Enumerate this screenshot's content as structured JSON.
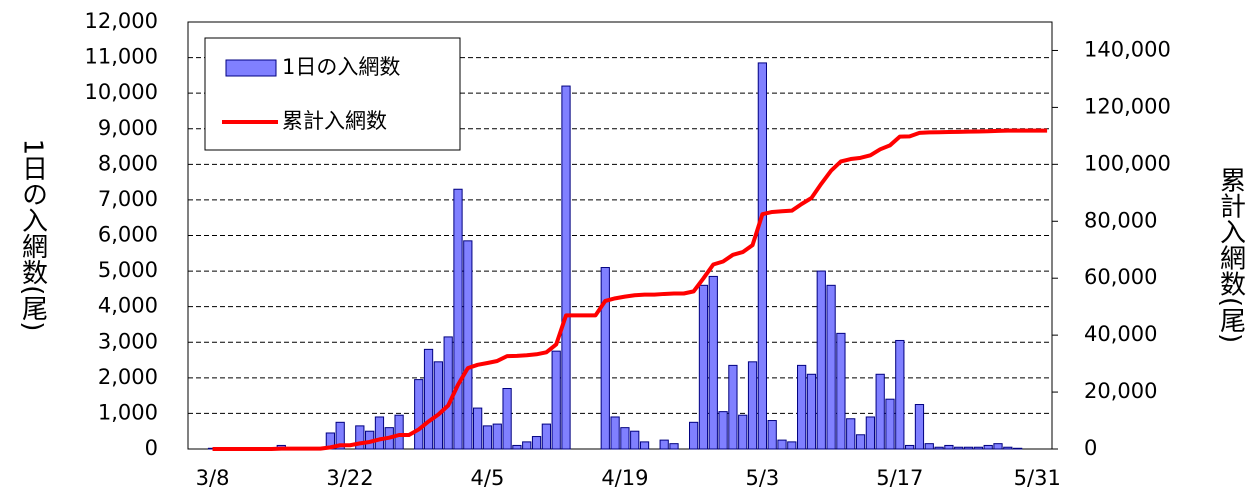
{
  "chart_data": {
    "type": "bar_line",
    "categories": [
      null,
      null,
      "3/8",
      null,
      null,
      null,
      null,
      null,
      null,
      null,
      null,
      null,
      null,
      null,
      null,
      null,
      "3/22",
      null,
      null,
      null,
      null,
      null,
      null,
      null,
      null,
      null,
      null,
      null,
      null,
      null,
      "4/5",
      null,
      null,
      null,
      null,
      null,
      null,
      null,
      null,
      null,
      null,
      null,
      null,
      null,
      "4/19",
      null,
      null,
      null,
      null,
      null,
      null,
      null,
      null,
      null,
      null,
      null,
      null,
      null,
      "5/3",
      null,
      null,
      null,
      null,
      null,
      null,
      null,
      null,
      null,
      null,
      null,
      null,
      null,
      "5/17",
      null,
      null,
      null,
      null,
      null,
      null,
      null,
      null,
      null,
      null,
      null,
      null,
      null,
      "5/31",
      null
    ],
    "series": [
      {
        "name": "1日の入網数",
        "color": "#8080ff",
        "type": "bar",
        "values": [
          0,
          0,
          20,
          0,
          0,
          0,
          0,
          0,
          0,
          100,
          0,
          0,
          0,
          0,
          450,
          750,
          0,
          650,
          500,
          900,
          600,
          950,
          0,
          1950,
          2800,
          2450,
          3150,
          7300,
          5850,
          1150,
          650,
          700,
          1700,
          100,
          200,
          350,
          700,
          2750,
          10200,
          0,
          0,
          0,
          5100,
          900,
          600,
          500,
          200,
          0,
          250,
          150,
          0,
          750,
          4600,
          4850,
          1050,
          2350,
          950,
          2450,
          10850,
          800,
          250,
          200,
          2350,
          2100,
          5000,
          4600,
          3250,
          850,
          400,
          900,
          2100,
          1400,
          3050,
          100,
          1250,
          150,
          50,
          100,
          50,
          50,
          50,
          100,
          150,
          50,
          20,
          0,
          0,
          0
        ]
      },
      {
        "name": "累計入網数",
        "color": "#ff0000",
        "type": "line",
        "axis": "y2",
        "values": [
          null,
          null,
          20,
          20,
          20,
          20,
          20,
          20,
          20,
          120,
          120,
          120,
          120,
          120,
          570,
          1320,
          1320,
          1970,
          2470,
          3370,
          3970,
          4920,
          4920,
          6870,
          9670,
          12120,
          15270,
          22570,
          28420,
          29570,
          30220,
          30920,
          32620,
          32720,
          32920,
          33270,
          33970,
          36720,
          46920,
          46920,
          46920,
          46920,
          52020,
          52920,
          53520,
          54020,
          54220,
          54220,
          54470,
          54620,
          54620,
          55370,
          59970,
          64820,
          65870,
          68220,
          69170,
          71620,
          82470,
          83270,
          83520,
          83720,
          86070,
          88170,
          93170,
          97770,
          101020,
          101870,
          102270,
          103170,
          105270,
          106670,
          109720,
          109820,
          111070,
          111220,
          111270,
          111370,
          111420,
          111470,
          111520,
          111620,
          111770,
          111820,
          111840,
          111840,
          111840,
          111840
        ]
      }
    ],
    "y_label": "1日の入網数(尾)",
    "y2_label": "累計入網数(尾)",
    "ylim": [
      0,
      12000
    ],
    "yticks": [
      0,
      {
        "value": 1000,
        "label": "1,000"
      },
      {
        "value": 2000,
        "label": "2,000"
      },
      {
        "value": 3000,
        "label": "3,000"
      },
      {
        "value": 4000,
        "label": "4,000"
      },
      {
        "value": 5000,
        "label": "5,000"
      },
      {
        "value": 6000,
        "label": "6,000"
      },
      {
        "value": 7000,
        "label": "7,000"
      },
      {
        "value": 8000,
        "label": "8,000"
      },
      {
        "value": 9000,
        "label": "9,000"
      },
      {
        "value": 10000,
        "label": "10,000"
      },
      {
        "value": 11000,
        "label": "11,000"
      },
      {
        "value": 12000,
        "label": "12,000"
      }
    ],
    "y2lim": [
      0,
      150000
    ],
    "y2ticks": [
      0,
      {
        "value": 20000,
        "label": "20,000"
      },
      {
        "value": 40000,
        "label": "40,000"
      },
      {
        "value": 60000,
        "label": "60,000"
      },
      {
        "value": 80000,
        "label": "80,000"
      },
      {
        "value": 100000,
        "label": "100,000"
      },
      {
        "value": 120000,
        "label": "120,000"
      },
      {
        "value": 140000,
        "label": "140,000"
      }
    ],
    "grid": true,
    "legend": "upper left"
  }
}
